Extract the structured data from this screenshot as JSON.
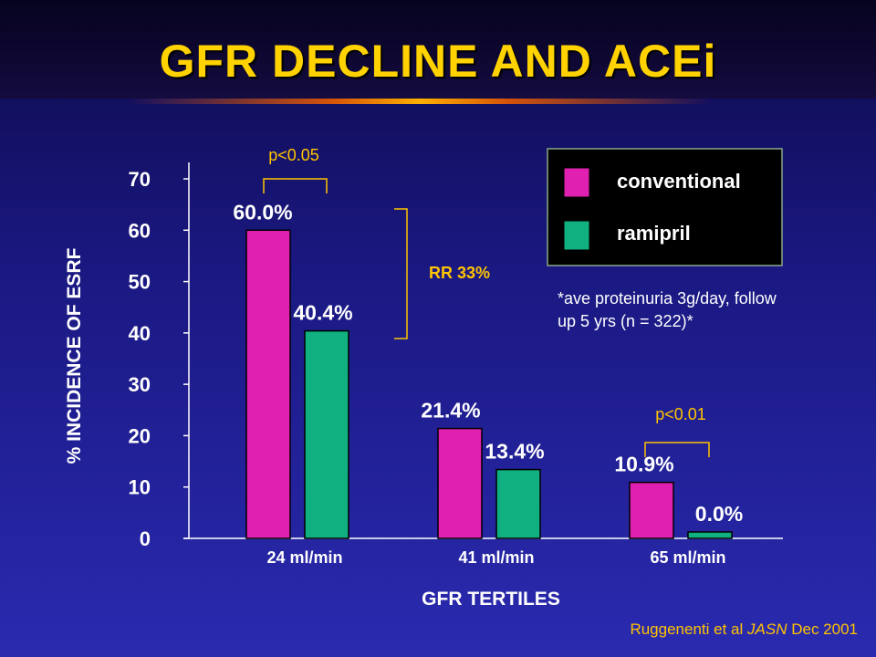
{
  "title": "GFR DECLINE AND ACEi",
  "chart_data": {
    "type": "bar",
    "categories": [
      "24 ml/min",
      "41 ml/min",
      "65 ml/min"
    ],
    "series": [
      {
        "name": "conventional",
        "values": [
          60.0,
          21.4,
          10.9
        ],
        "labels": [
          "60.0%",
          "21.4%",
          "10.9%"
        ],
        "color": "#e020b0"
      },
      {
        "name": "ramipril",
        "values": [
          40.4,
          13.4,
          0.0
        ],
        "labels": [
          "40.4%",
          "13.4%",
          "0.0%"
        ],
        "color": "#10b080"
      }
    ],
    "xlabel": "GFR TERTILES",
    "ylabel": "% INCIDENCE OF ESRF",
    "ylim": [
      0,
      70
    ],
    "yticks": [
      "0",
      "10",
      "20",
      "30",
      "40",
      "50",
      "60",
      "70"
    ],
    "legend_position": "top-right",
    "annotations": {
      "p_first": "p<0.05",
      "rr": "RR 33%",
      "p_third": "p<0.01",
      "note_line1": "*ave proteinuria 3g/day, follow",
      "note_line2": "up 5 yrs  (n = 322)*"
    }
  },
  "footer": {
    "authors": "Ruggenenti et al",
    "journal": "JASN",
    "date": "Dec 2001"
  },
  "colors": {
    "title": "#ffd200",
    "annotation": "#ffc400",
    "axis": "#ffffff"
  }
}
